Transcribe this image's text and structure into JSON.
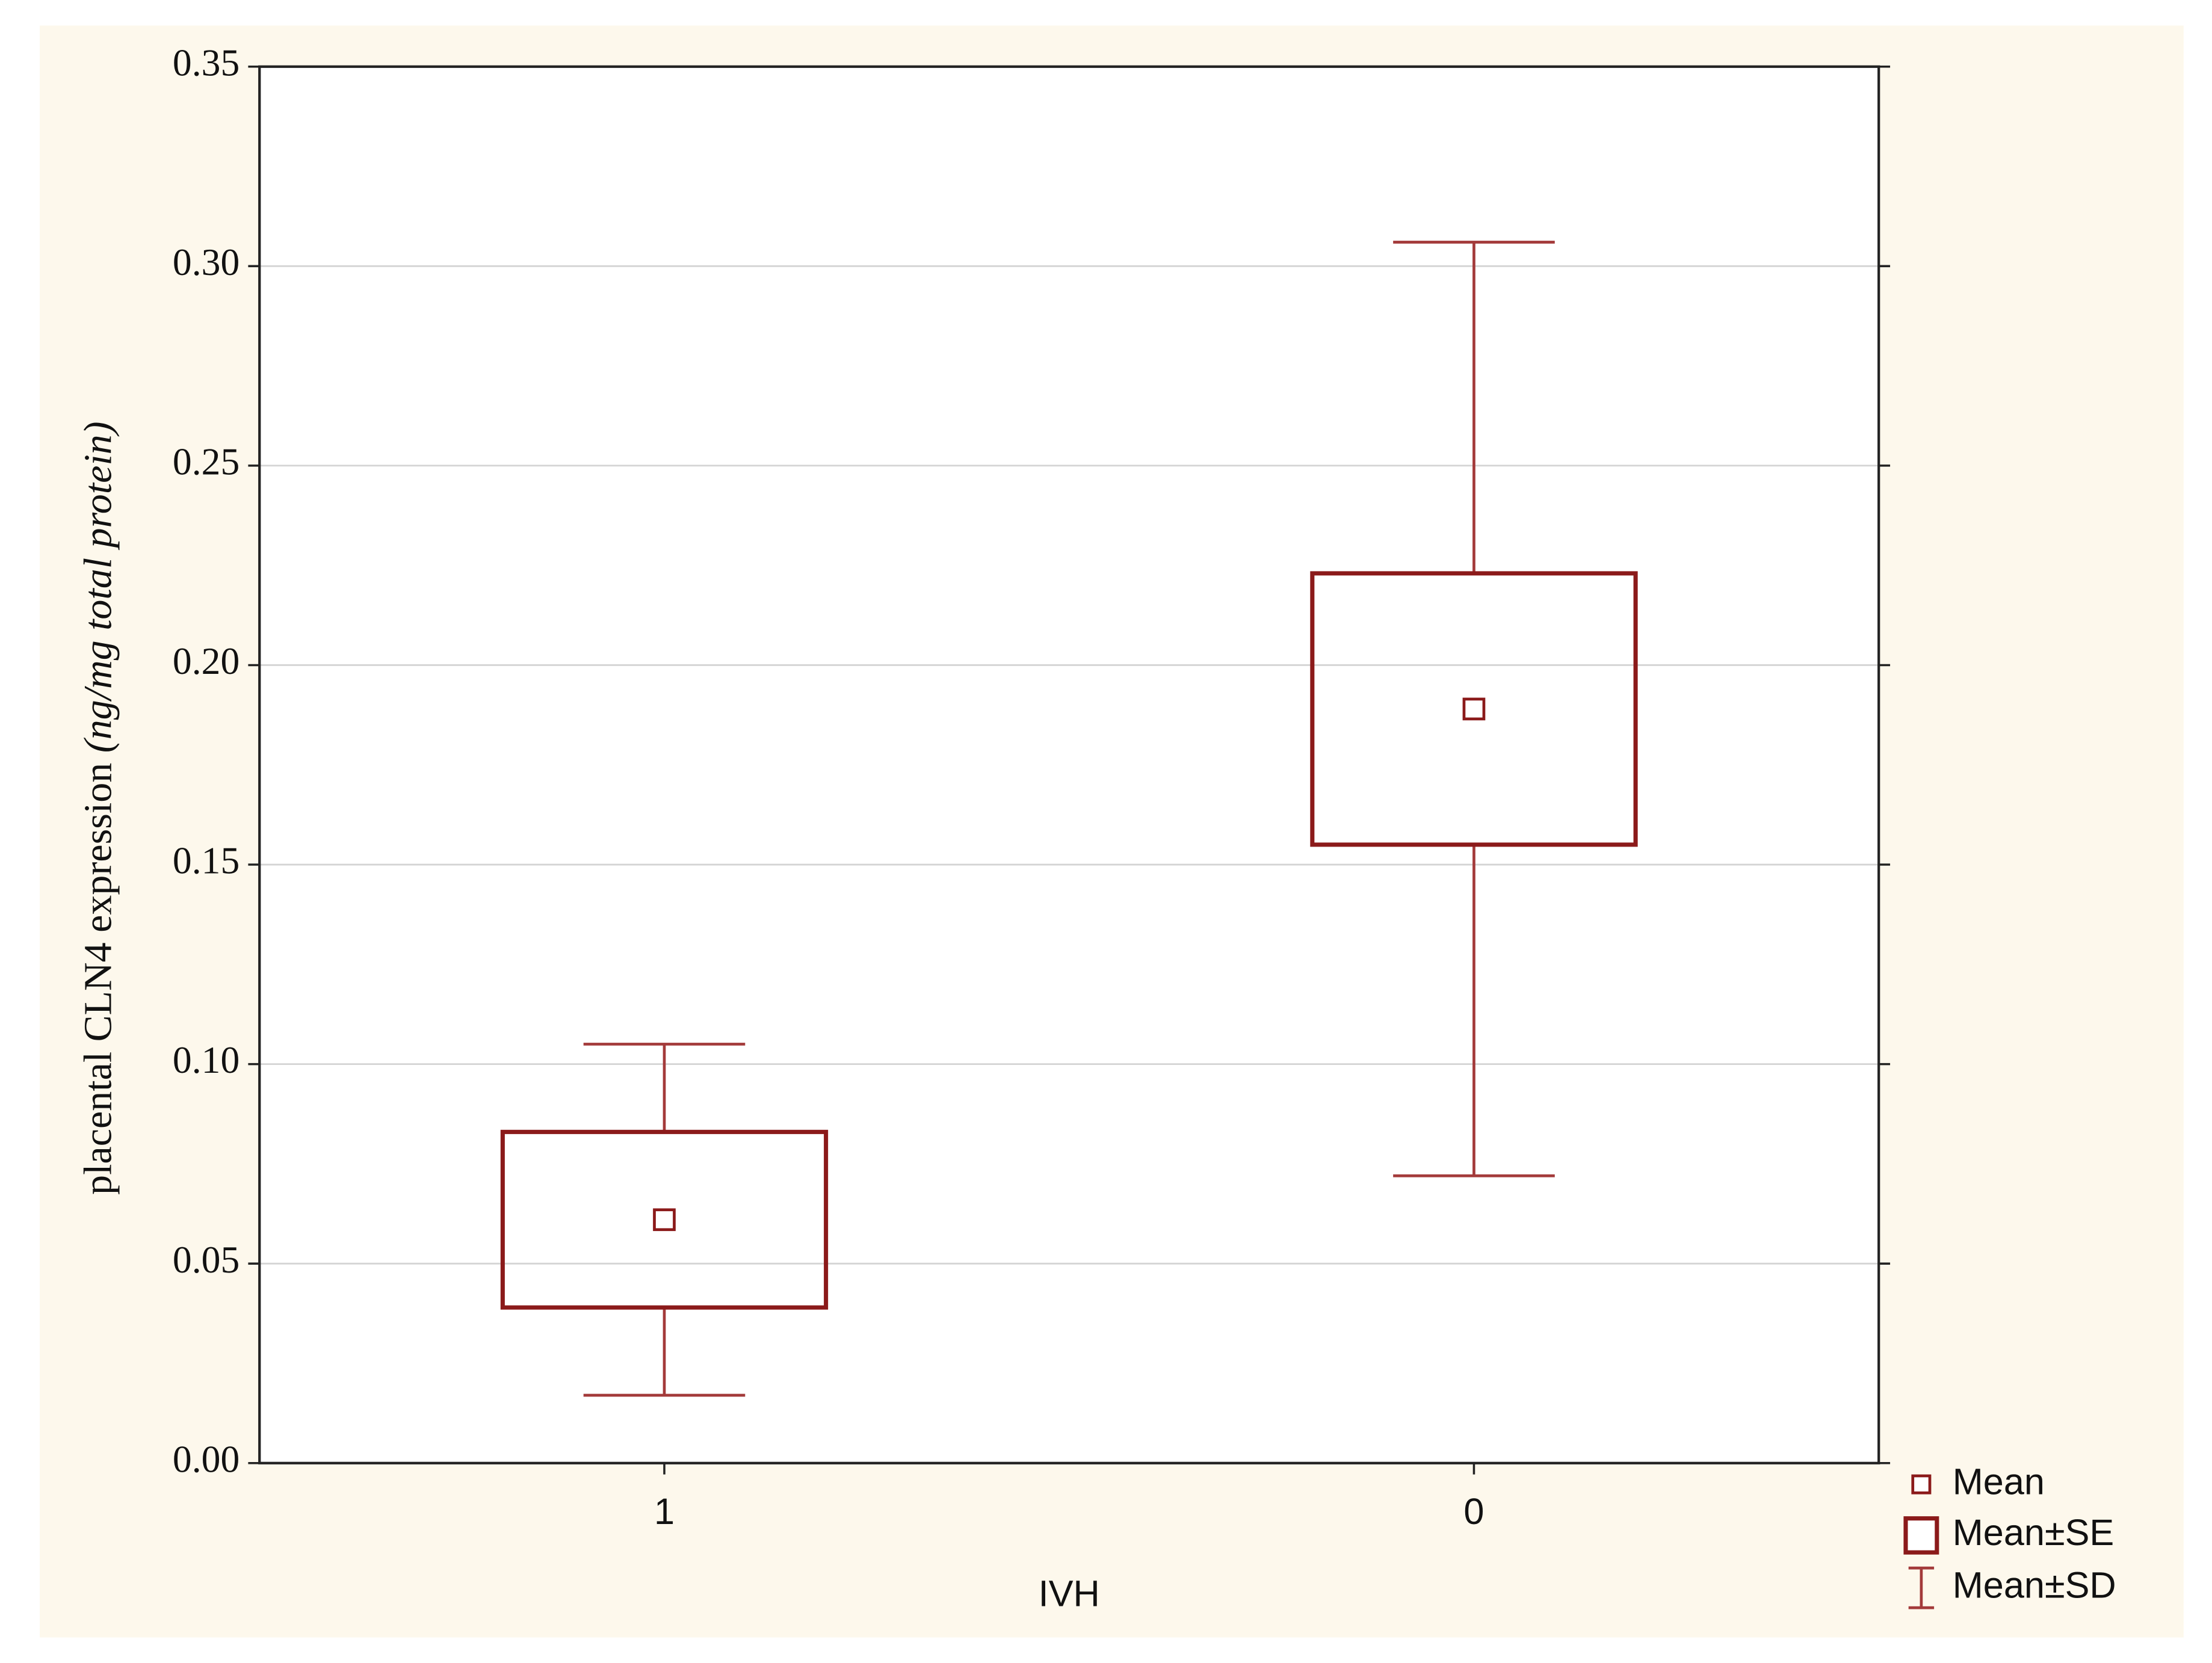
{
  "chart_data": {
    "type": "mean-se-sd",
    "y_label": "placental CLN4 expression",
    "y_label_unit": "(ng/mg total protein)",
    "x_label": "IVH",
    "categories": [
      "1",
      "0"
    ],
    "series": [
      {
        "name": "Mean",
        "color": "#8b1a1a",
        "values": [
          0.061,
          0.189
        ]
      },
      {
        "name": "Mean±SE",
        "color": "#8b1a1a",
        "values": [
          0.022,
          0.034
        ]
      },
      {
        "name": "Mean±SD",
        "color": "#a33a3a",
        "values": [
          0.044,
          0.117
        ]
      }
    ],
    "ylim": [
      0,
      0.35
    ],
    "yticks": [
      {
        "value": 0,
        "label": "0.00"
      },
      {
        "value": 0.05,
        "label": "0.05"
      },
      {
        "value": 0.1,
        "label": "0.10"
      },
      {
        "value": 0.15,
        "label": "0.15"
      },
      {
        "value": 0.2,
        "label": "0.20"
      },
      {
        "value": 0.25,
        "label": "0.25"
      },
      {
        "value": 0.3,
        "label": "0.30"
      },
      {
        "value": 0.35,
        "label": "0.35"
      }
    ],
    "grid": true
  }
}
